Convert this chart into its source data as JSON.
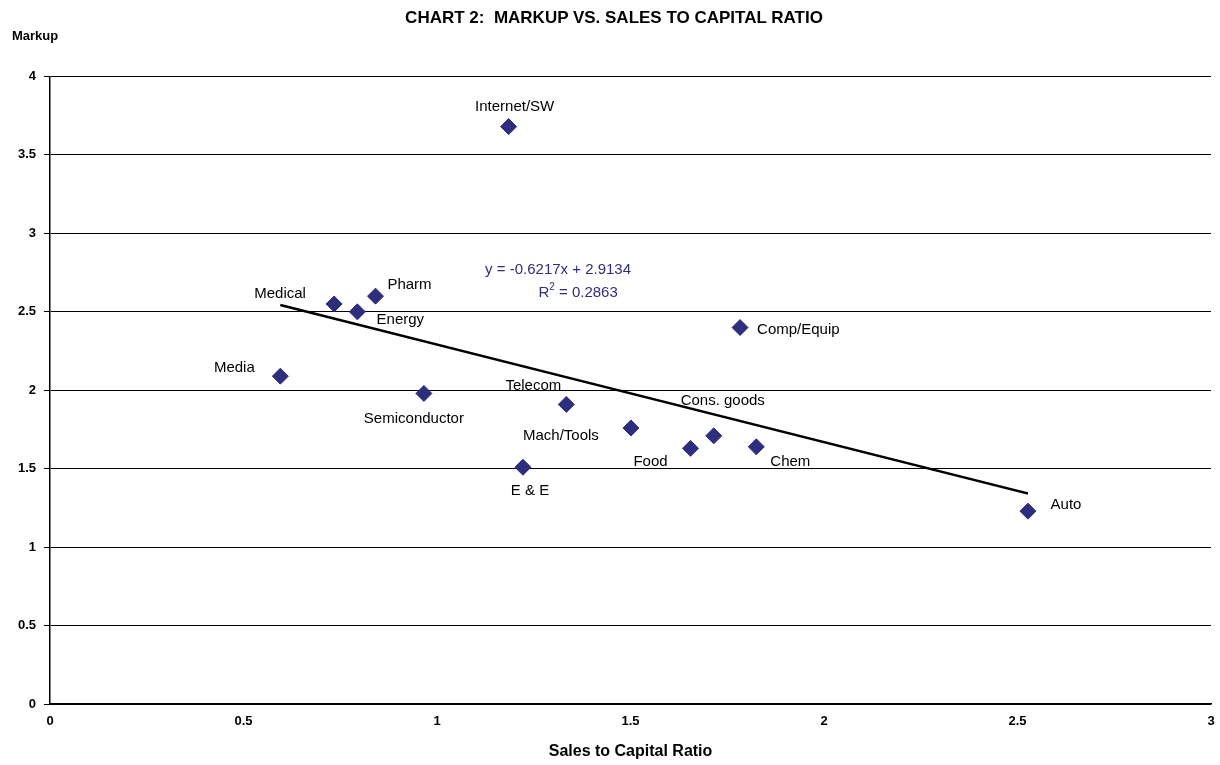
{
  "chart_data": {
    "type": "scatter",
    "title": "CHART 2:  MARKUP VS. SALES TO CAPITAL RATIO",
    "xlabel": "Sales to Capital Ratio",
    "ylabel": "Markup",
    "xlim": [
      0,
      3
    ],
    "xticks": [
      0,
      0.5,
      1,
      1.5,
      2,
      2.5,
      3
    ],
    "ylim": [
      0,
      4
    ],
    "yticks": [
      0,
      0.5,
      1,
      1.5,
      2,
      2.5,
      3,
      3.5,
      4
    ],
    "grid": "y",
    "marker": "diamond",
    "series": [
      {
        "type": "scatter",
        "color": "#2e2e7e",
        "x": [
          1.185,
          0.734,
          0.841,
          0.794,
          1.783,
          0.595,
          0.966,
          1.334,
          1.501,
          1.655,
          1.715,
          1.825,
          1.222,
          2.527
        ],
        "values": [
          3.68,
          2.55,
          2.6,
          2.5,
          2.4,
          2.09,
          1.98,
          1.91,
          1.76,
          1.63,
          1.71,
          1.64,
          1.51,
          1.23
        ]
      },
      {
        "type": "line",
        "color": "#000000",
        "marker": "none",
        "x": [
          0.595,
          2.527
        ],
        "values": [
          2.543,
          1.342
        ]
      }
    ],
    "annotations": [
      "y = -0.6217x + 2.9134",
      "R$^{2}$ = 0.2863",
      {
        "text": "Internet/SW",
        "x": 1.185,
        "y": 3.68
      },
      {
        "text": "Medical",
        "x": 0.734,
        "y": 2.55
      },
      {
        "text": "Pharm",
        "x": 0.841,
        "y": 2.6
      },
      {
        "text": "Energy",
        "x": 0.794,
        "y": 2.5
      },
      {
        "text": "Comp/Equip",
        "x": 1.783,
        "y": 2.4
      },
      {
        "text": "Media",
        "x": 0.595,
        "y": 2.09
      },
      {
        "text": "Semiconductor",
        "x": 0.966,
        "y": 1.98
      },
      {
        "text": "Telecom",
        "x": 1.334,
        "y": 1.91
      },
      {
        "text": "Mach/Tools",
        "x": 1.501,
        "y": 1.76
      },
      {
        "text": "Food",
        "x": 1.655,
        "y": 1.63
      },
      {
        "text": "Cons. goods",
        "x": 1.715,
        "y": 1.71
      },
      {
        "text": "Chem",
        "x": 1.825,
        "y": 1.64
      },
      {
        "text": "E & E",
        "x": 1.222,
        "y": 1.51
      },
      {
        "text": "Auto",
        "x": 2.527,
        "y": 1.23
      }
    ]
  }
}
